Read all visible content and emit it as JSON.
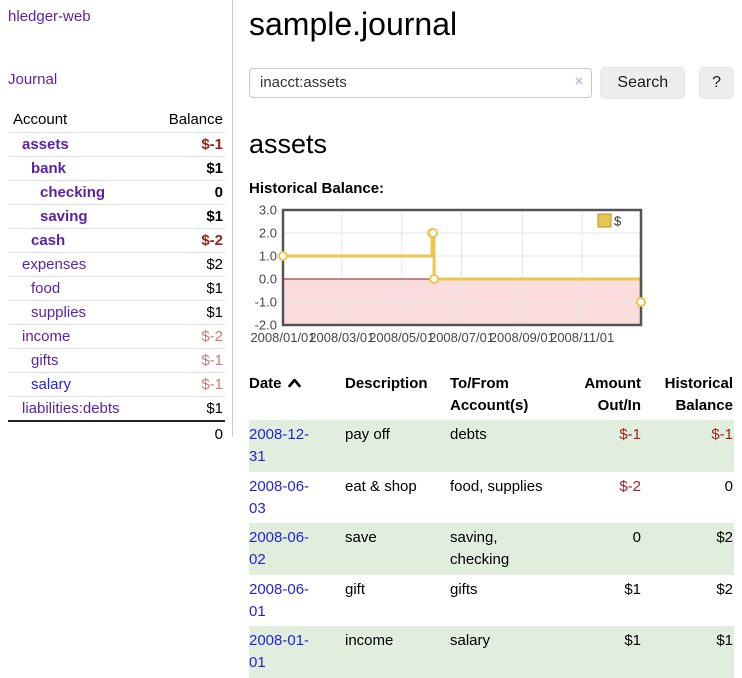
{
  "app": {
    "brand": "hledger-web",
    "nav_journal": "Journal"
  },
  "sidebar": {
    "col_account": "Account",
    "col_balance": "Balance",
    "rows": [
      {
        "name": "assets",
        "depth": 1,
        "bold": true,
        "balance": "$-1",
        "balance_class": "neg",
        "link_class": "plink"
      },
      {
        "name": "bank",
        "depth": 2,
        "bold": true,
        "balance": "$1",
        "balance_class": "",
        "link_class": "plink"
      },
      {
        "name": "checking",
        "depth": 3,
        "bold": true,
        "balance": "0",
        "balance_class": "",
        "link_class": "plink"
      },
      {
        "name": "saving",
        "depth": 3,
        "bold": true,
        "balance": "$1",
        "balance_class": "",
        "link_class": "plink"
      },
      {
        "name": "cash",
        "depth": 2,
        "bold": true,
        "balance": "$-2",
        "balance_class": "neg",
        "link_class": "plink"
      },
      {
        "name": "expenses",
        "depth": 1,
        "bold": false,
        "balance": "$2",
        "balance_class": "",
        "link_class": "plink"
      },
      {
        "name": "food",
        "depth": 2,
        "bold": false,
        "balance": "$1",
        "balance_class": "",
        "link_class": "plink"
      },
      {
        "name": "supplies",
        "depth": 2,
        "bold": false,
        "balance": "$1",
        "balance_class": "",
        "link_class": "plink"
      },
      {
        "name": "income",
        "depth": 1,
        "bold": false,
        "balance": "$-2",
        "balance_class": "mutedneg",
        "link_class": "plink"
      },
      {
        "name": "gifts",
        "depth": 2,
        "bold": false,
        "balance": "$-1",
        "balance_class": "mutedneg",
        "link_class": "plink"
      },
      {
        "name": "salary",
        "depth": 2,
        "bold": false,
        "balance": "$-1",
        "balance_class": "mutedneg",
        "link_class": "bluelink"
      },
      {
        "name": "liabilities:debts",
        "depth": 1,
        "bold": false,
        "balance": "$1",
        "balance_class": "",
        "link_class": "plink"
      }
    ],
    "total": "0"
  },
  "header": {
    "title": "sample.journal"
  },
  "search": {
    "value": "inacct:assets",
    "clear_icon": "×",
    "button": "Search",
    "help_button": "?"
  },
  "account_page": {
    "heading": "assets",
    "chart_label": "Historical Balance:"
  },
  "chart_data": {
    "type": "line",
    "title": "Historical Balance",
    "step": true,
    "series": [
      {
        "name": "$",
        "color": "#e9c64d",
        "marker_fill": "#ffffff",
        "points": [
          {
            "date": "2008-01-01",
            "day": 0,
            "value": 1
          },
          {
            "date": "2008-06-01",
            "day": 152,
            "value": 2
          },
          {
            "date": "2008-06-02",
            "day": 153,
            "value": 2
          },
          {
            "date": "2008-06-03",
            "day": 154,
            "value": 0
          },
          {
            "date": "2008-12-31",
            "day": 365,
            "value": -1
          }
        ]
      }
    ],
    "x_ticks": [
      {
        "label": "2008/01/01",
        "day": 0
      },
      {
        "label": "2008/03/01",
        "day": 60
      },
      {
        "label": "2008/05/01",
        "day": 121
      },
      {
        "label": "2008/07/01",
        "day": 182
      },
      {
        "label": "2008/09/01",
        "day": 244
      },
      {
        "label": "2008/11/01",
        "day": 305
      }
    ],
    "x_range_days": [
      0,
      365
    ],
    "y_ticks": [
      "3.0",
      "2.0",
      "1.0",
      "0.0",
      "-1.0",
      "-2.0"
    ],
    "ylim": [
      -2,
      3
    ],
    "legend": {
      "label": "$",
      "position": "top-right"
    },
    "grid": true,
    "colors": {
      "negative_region": "#fbdcdc",
      "zero_line": "#8b1a1a",
      "gridline": "#e6e6e6",
      "border": "#545454",
      "tick_text": "#474747"
    }
  },
  "register": {
    "columns": [
      "Date",
      "Description",
      "To/From Account(s)",
      "Amount Out/In",
      "Historical Balance"
    ],
    "rows": [
      {
        "date": "2008-12-31",
        "description": "pay off",
        "accounts": "debts",
        "amount": "$-1",
        "amount_negative": true,
        "balance": "$-1",
        "balance_negative": true
      },
      {
        "date": "2008-06-03",
        "description": "eat & shop",
        "accounts": "food, supplies",
        "amount": "$-2",
        "amount_negative": true,
        "balance": "0",
        "balance_negative": false
      },
      {
        "date": "2008-06-02",
        "description": "save",
        "accounts": "saving, checking",
        "amount": "0",
        "amount_negative": false,
        "balance": "$2",
        "balance_negative": false
      },
      {
        "date": "2008-06-01",
        "description": "gift",
        "accounts": "gifts",
        "amount": "$1",
        "amount_negative": false,
        "balance": "$2",
        "balance_negative": false
      },
      {
        "date": "2008-01-01",
        "description": "income",
        "accounts": "salary",
        "amount": "$1",
        "amount_negative": false,
        "balance": "$1",
        "balance_negative": false
      }
    ]
  },
  "colors": {
    "link_purple": "#5b23a4",
    "link_blue": "#2424d6",
    "negative": "#9c1e1e",
    "muted_negative": "#c17f7f",
    "row_tint_green": "#e1eede",
    "chart_gold": "#e9c64d"
  }
}
